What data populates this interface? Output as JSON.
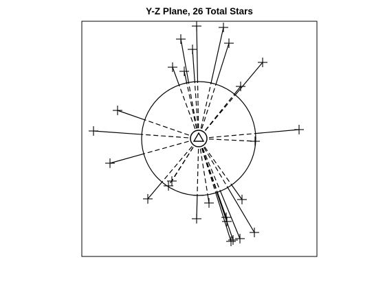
{
  "title": "Y-Z Plane, 26 Total Stars",
  "chart_data": {
    "type": "diagram",
    "title": "Y-Z Plane, 26 Total Stars",
    "star_count": 26,
    "center": [
      0,
      0
    ],
    "outer_circle_radius": 83,
    "inner_circle_radius": 12,
    "xlim": [
      -170,
      170
    ],
    "ylim": [
      -170,
      170
    ],
    "grid": false,
    "stars": [
      {
        "x": -3,
        "y": 164
      },
      {
        "x": 36,
        "y": 162
      },
      {
        "x": -26,
        "y": 145
      },
      {
        "x": 44,
        "y": 139
      },
      {
        "x": -9,
        "y": 130
      },
      {
        "x": 93,
        "y": 111
      },
      {
        "x": -38,
        "y": 104
      },
      {
        "x": -21,
        "y": 98
      },
      {
        "x": 61,
        "y": 76
      },
      {
        "x": -118,
        "y": 41
      },
      {
        "x": -153,
        "y": 11
      },
      {
        "x": 146,
        "y": 13
      },
      {
        "x": 82,
        "y": -4
      },
      {
        "x": -129,
        "y": -36
      },
      {
        "x": -39,
        "y": -62
      },
      {
        "x": -44,
        "y": -69
      },
      {
        "x": -74,
        "y": -88
      },
      {
        "x": 63,
        "y": -89
      },
      {
        "x": 15,
        "y": -94
      },
      {
        "x": -3,
        "y": -117
      },
      {
        "x": 41,
        "y": -121
      },
      {
        "x": 81,
        "y": -137
      },
      {
        "x": 50,
        "y": -148
      },
      {
        "x": 60,
        "y": -146
      },
      {
        "x": 47,
        "y": -150
      },
      {
        "x": 40,
        "y": -115
      }
    ]
  },
  "colors": {
    "line": "#000000",
    "background": "#ffffff"
  }
}
